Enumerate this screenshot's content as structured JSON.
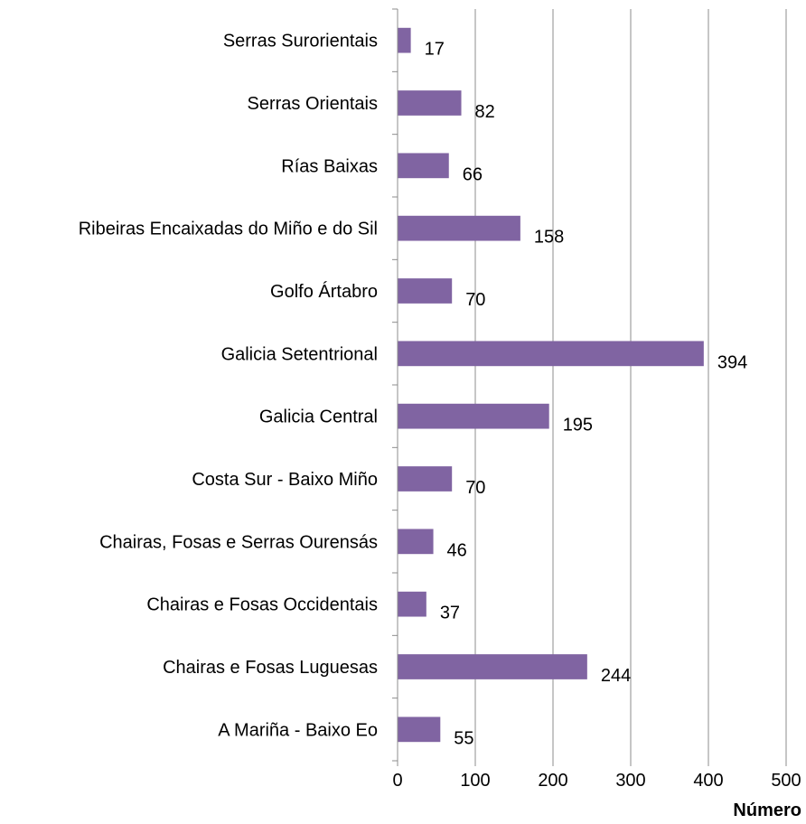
{
  "chart_data": {
    "type": "bar",
    "orientation": "horizontal",
    "title": "",
    "xlabel": "Número",
    "ylabel": "",
    "xlim": [
      0,
      500
    ],
    "xticks": [
      0,
      100,
      200,
      300,
      400,
      500
    ],
    "grid": "vertical",
    "legend": "none",
    "bar_color": "#8064A2",
    "categories": [
      "Serras Surorientais",
      "Serras Orientais",
      "Rías Baixas",
      "Ribeiras Encaixadas do Miño e do Sil",
      "Golfo Ártabro",
      "Galicia Setentrional",
      "Galicia Central",
      "Costa Sur - Baixo Miño",
      "Chairas, Fosas e Serras Ourensás",
      "Chairas e Fosas Occidentais",
      "Chairas e Fosas Luguesas",
      "A Mariña - Baixo Eo"
    ],
    "values": [
      17,
      82,
      66,
      158,
      70,
      394,
      195,
      70,
      46,
      37,
      244,
      55
    ]
  }
}
